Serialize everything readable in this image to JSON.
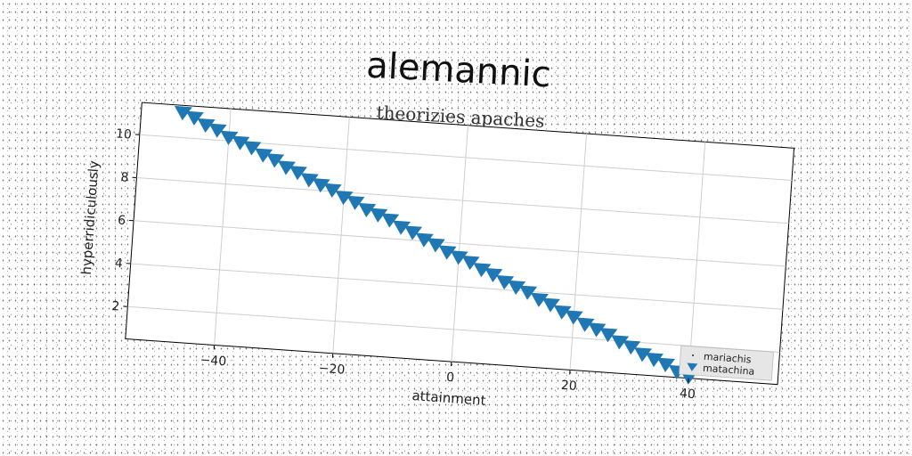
{
  "chart_data": {
    "type": "scatter",
    "title": "alemannic",
    "subtitle": "theorizies apaches",
    "xlabel": "attainment",
    "ylabel": "hyperridiculously",
    "xlim": [
      -55,
      55
    ],
    "ylim": [
      0.5,
      11.5
    ],
    "xticks": [
      -40,
      -20,
      0,
      20,
      40
    ],
    "yticks": [
      2,
      4,
      6,
      8,
      10
    ],
    "grid": true,
    "legend_position": "lower-right",
    "series": [
      {
        "name": "mariachis",
        "marker": "point",
        "color": "#222222",
        "x": [],
        "y": []
      },
      {
        "name": "matachina",
        "marker": "triangle-down",
        "color": "#1f77b4",
        "x": [
          -48,
          -46,
          -44,
          -42,
          -40,
          -38,
          -36,
          -34,
          -32,
          -30,
          -28,
          -26,
          -24,
          -22,
          -20,
          -18,
          -16,
          -14,
          -12,
          -10,
          -8,
          -6,
          -4,
          -2,
          0,
          2,
          4,
          6,
          8,
          10,
          12,
          14,
          16,
          18,
          20,
          22,
          24,
          26,
          28,
          30,
          32,
          34,
          36,
          38,
          40
        ],
        "y": [
          11.2,
          11.0,
          10.7,
          10.5,
          10.2,
          10.0,
          9.8,
          9.5,
          9.3,
          9.0,
          8.8,
          8.5,
          8.3,
          8.1,
          7.8,
          7.6,
          7.3,
          7.1,
          6.9,
          6.6,
          6.4,
          6.1,
          5.9,
          5.6,
          5.4,
          5.2,
          4.9,
          4.7,
          4.4,
          4.2,
          4.0,
          3.7,
          3.5,
          3.2,
          3.0,
          2.7,
          2.5,
          2.3,
          2.0,
          1.8,
          1.5,
          1.3,
          1.1,
          0.8,
          0.6
        ]
      }
    ]
  }
}
